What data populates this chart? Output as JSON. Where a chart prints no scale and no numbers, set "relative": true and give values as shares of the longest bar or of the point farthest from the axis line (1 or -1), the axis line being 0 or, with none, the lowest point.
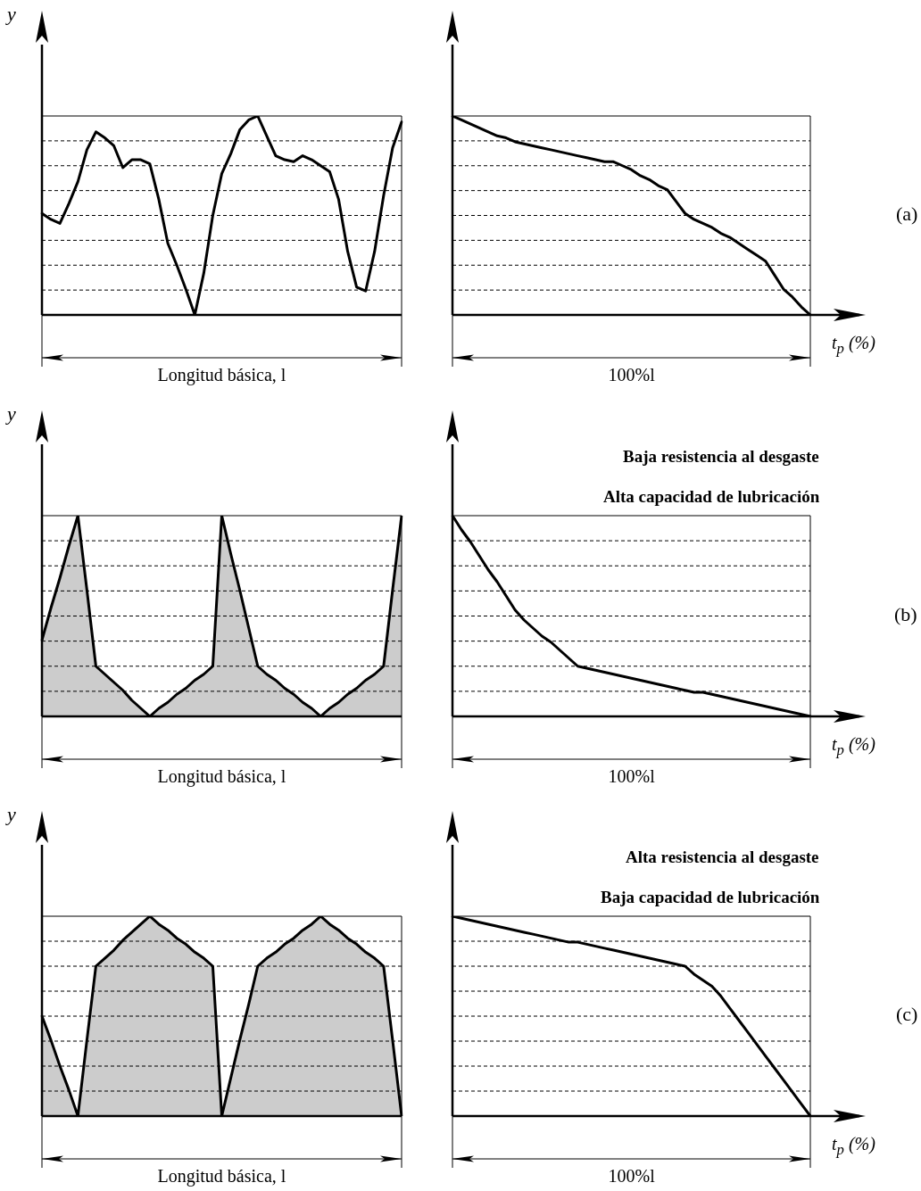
{
  "chart_data": [
    {
      "type": "line",
      "relative": true,
      "color": "#000000",
      "grid": "y",
      "tick_labels": false,
      "ylabel": "y",
      "annotations": [
        "Longitud básica, l"
      ],
      "categories": [
        null,
        null,
        null,
        null,
        null,
        null,
        null,
        null,
        null,
        null,
        null,
        null,
        null,
        null,
        null,
        null,
        null,
        null,
        null,
        null,
        null,
        null,
        null,
        null,
        null,
        null,
        null,
        null,
        null,
        null,
        null,
        null,
        null,
        null,
        null,
        null,
        null,
        null,
        null,
        null,
        null
      ],
      "values": [
        0.51,
        0.48,
        0.46,
        0.56,
        0.67,
        0.83,
        0.92,
        0.89,
        0.85,
        0.74,
        0.78,
        0.78,
        0.76,
        0.58,
        0.36,
        0.25,
        0.13,
        0,
        0.21,
        0.5,
        0.71,
        0.81,
        0.93,
        0.98,
        1,
        0.9,
        0.8,
        0.78,
        0.77,
        0.8,
        0.78,
        0.75,
        0.72,
        0.58,
        0.32,
        0.14,
        0.12,
        0.32,
        0.6,
        0.84,
        0.97
      ]
    },
    {
      "type": "line",
      "relative": true,
      "color": "#000000",
      "grid": "y",
      "tick_labels": false,
      "xlabel": "t$_{p}$ (%)",
      "annotations": [
        "100%l",
        "(a)"
      ],
      "categories": [
        null,
        null,
        null,
        null,
        null,
        null,
        null,
        null,
        null,
        null,
        null,
        null,
        null,
        null,
        null,
        null,
        null,
        null,
        null,
        null,
        null,
        null,
        null,
        null,
        null,
        null,
        null,
        null,
        null,
        null,
        null,
        null,
        null,
        null,
        null,
        null,
        null,
        null,
        null,
        null,
        null
      ],
      "values": [
        1,
        0.98,
        0.96,
        0.94,
        0.92,
        0.9,
        0.89,
        0.87,
        0.86,
        0.85,
        0.84,
        0.83,
        0.82,
        0.81,
        0.8,
        0.79,
        0.78,
        0.77,
        0.77,
        0.75,
        0.73,
        0.7,
        0.68,
        0.65,
        0.63,
        0.57,
        0.51,
        0.48,
        0.46,
        0.44,
        0.41,
        0.39,
        0.36,
        0.33,
        0.3,
        0.27,
        0.2,
        0.13,
        0.09,
        0.04,
        0
      ]
    },
    {
      "type": "area",
      "relative": true,
      "color": "#000000",
      "grid": "y",
      "tick_labels": false,
      "ylabel": "y",
      "annotations": [
        "Longitud básica, l"
      ],
      "categories": [
        null,
        null,
        null,
        null,
        null,
        null,
        null,
        null,
        null,
        null,
        null,
        null,
        null,
        null,
        null,
        null,
        null,
        null,
        null,
        null,
        null,
        null,
        null,
        null,
        null,
        null,
        null,
        null,
        null,
        null,
        null,
        null,
        null,
        null,
        null,
        null,
        null,
        null,
        null,
        null,
        null
      ],
      "values": [
        0.38,
        0.54,
        0.69,
        0.85,
        1,
        0.63,
        0.25,
        0.21,
        0.17,
        0.13,
        0.08,
        0.04,
        0,
        0.04,
        0.07,
        0.11,
        0.14,
        0.18,
        0.21,
        0.25,
        1,
        0.81,
        0.63,
        0.44,
        0.25,
        0.21,
        0.18,
        0.14,
        0.11,
        0.07,
        0.04,
        0,
        0.04,
        0.07,
        0.11,
        0.14,
        0.18,
        0.21,
        0.25,
        0.63,
        1
      ]
    },
    {
      "type": "line",
      "relative": true,
      "color": "#000000",
      "grid": "y",
      "tick_labels": false,
      "title": "Baja resistencia al desgaste",
      "subtitle": "Alta capacidad de lubricación",
      "xlabel": "t$_{p}$ (%)",
      "annotations": [
        "100%l",
        "(b)"
      ],
      "categories": [
        null,
        null,
        null,
        null,
        null,
        null,
        null,
        null,
        null,
        null,
        null,
        null,
        null,
        null,
        null,
        null,
        null,
        null,
        null,
        null,
        null,
        null,
        null,
        null,
        null,
        null,
        null,
        null,
        null,
        null,
        null,
        null,
        null,
        null,
        null,
        null,
        null,
        null,
        null,
        null,
        null
      ],
      "values": [
        1,
        0.93,
        0.87,
        0.8,
        0.73,
        0.67,
        0.6,
        0.53,
        0.48,
        0.44,
        0.4,
        0.37,
        0.33,
        0.29,
        0.25,
        0.24,
        0.23,
        0.22,
        0.21,
        0.2,
        0.19,
        0.18,
        0.17,
        0.16,
        0.15,
        0.14,
        0.13,
        0.12,
        0.12,
        0.11,
        0.1,
        0.09,
        0.08,
        0.07,
        0.06,
        0.05,
        0.04,
        0.03,
        0.02,
        0.01,
        0
      ]
    },
    {
      "type": "area",
      "relative": true,
      "color": "#000000",
      "grid": "y",
      "tick_labels": false,
      "ylabel": "y",
      "annotations": [
        "Longitud básica, l"
      ],
      "categories": [
        null,
        null,
        null,
        null,
        null,
        null,
        null,
        null,
        null,
        null,
        null,
        null,
        null,
        null,
        null,
        null,
        null,
        null,
        null,
        null,
        null,
        null,
        null,
        null,
        null,
        null,
        null,
        null,
        null,
        null,
        null,
        null,
        null,
        null,
        null,
        null,
        null,
        null,
        null,
        null,
        null
      ],
      "values": [
        0.5,
        0.38,
        0.25,
        0.13,
        0,
        0.38,
        0.75,
        0.79,
        0.83,
        0.88,
        0.92,
        0.96,
        1,
        0.96,
        0.93,
        0.89,
        0.86,
        0.82,
        0.79,
        0.75,
        0,
        0.19,
        0.38,
        0.56,
        0.75,
        0.79,
        0.82,
        0.86,
        0.89,
        0.93,
        0.96,
        1,
        0.96,
        0.93,
        0.89,
        0.86,
        0.82,
        0.79,
        0.75,
        0.38,
        0
      ]
    },
    {
      "type": "line",
      "relative": true,
      "color": "#000000",
      "grid": "y",
      "tick_labels": false,
      "title": "Alta resistencia al desgaste",
      "subtitle": "Baja capacidad de lubricación",
      "xlabel": "t$_{p}$ (%)",
      "annotations": [
        "100%l",
        "(c)"
      ],
      "categories": [
        null,
        null,
        null,
        null,
        null,
        null,
        null,
        null,
        null,
        null,
        null,
        null,
        null,
        null,
        null,
        null,
        null,
        null,
        null,
        null,
        null,
        null,
        null,
        null,
        null,
        null,
        null,
        null,
        null,
        null,
        null,
        null,
        null,
        null,
        null,
        null,
        null,
        null,
        null,
        null,
        null
      ],
      "values": [
        1,
        0.99,
        0.98,
        0.97,
        0.96,
        0.95,
        0.94,
        0.93,
        0.92,
        0.91,
        0.9,
        0.89,
        0.88,
        0.87,
        0.87,
        0.86,
        0.85,
        0.84,
        0.83,
        0.82,
        0.81,
        0.8,
        0.79,
        0.78,
        0.77,
        0.76,
        0.75,
        0.71,
        0.68,
        0.65,
        0.6,
        0.54,
        0.48,
        0.42,
        0.36,
        0.3,
        0.24,
        0.18,
        0.12,
        0.06,
        0
      ]
    }
  ]
}
